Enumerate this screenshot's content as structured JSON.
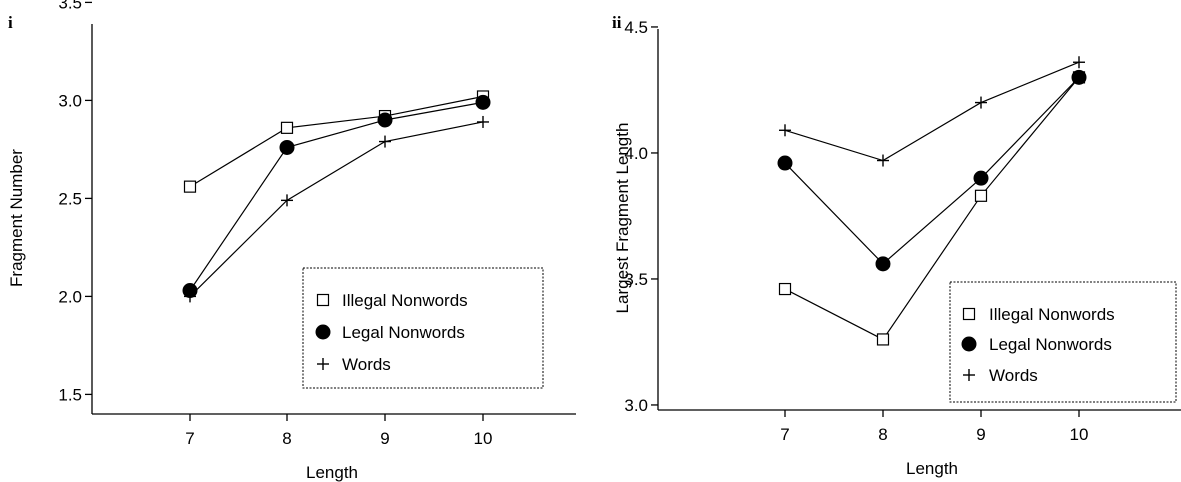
{
  "chart_data": [
    {
      "type": "line",
      "panel_label": "i",
      "xlabel": "Length",
      "ylabel": "Fragment Number",
      "x": [
        7,
        8,
        9,
        10
      ],
      "xlim": [
        6,
        11
      ],
      "ylim": [
        1.4,
        3.5
      ],
      "yticks": [
        "1.5",
        "2.0",
        "2.5",
        "3.0",
        "3.5"
      ],
      "xticks": [
        "7",
        "8",
        "9",
        "10"
      ],
      "grid": false,
      "legend_position": "bottom-right",
      "series": [
        {
          "name": "Illegal Nonwords",
          "marker": "open-square",
          "values": [
            2.56,
            2.86,
            2.92,
            3.02
          ]
        },
        {
          "name": "Legal Nonwords",
          "marker": "filled-circle",
          "values": [
            2.03,
            2.76,
            2.9,
            2.99
          ]
        },
        {
          "name": "Words",
          "marker": "plus",
          "values": [
            2.0,
            2.49,
            2.79,
            2.89
          ]
        }
      ]
    },
    {
      "type": "line",
      "panel_label": "ii",
      "xlabel": "Length",
      "ylabel": "Largest Fragment Length",
      "x": [
        7,
        8,
        9,
        10
      ],
      "xlim": [
        6,
        11
      ],
      "ylim": [
        2.98,
        4.5
      ],
      "yticks": [
        "3.0",
        "3.5",
        "4.0",
        "4.5"
      ],
      "xticks": [
        "7",
        "8",
        "9",
        "10"
      ],
      "grid": false,
      "legend_position": "bottom-right",
      "series": [
        {
          "name": "Illegal Nonwords",
          "marker": "open-square",
          "values": [
            3.46,
            3.26,
            3.83,
            4.3
          ]
        },
        {
          "name": "Legal Nonwords",
          "marker": "filled-circle",
          "values": [
            3.96,
            3.56,
            3.9,
            4.3
          ]
        },
        {
          "name": "Words",
          "marker": "plus",
          "values": [
            4.09,
            3.97,
            4.2,
            4.36
          ]
        }
      ]
    }
  ]
}
